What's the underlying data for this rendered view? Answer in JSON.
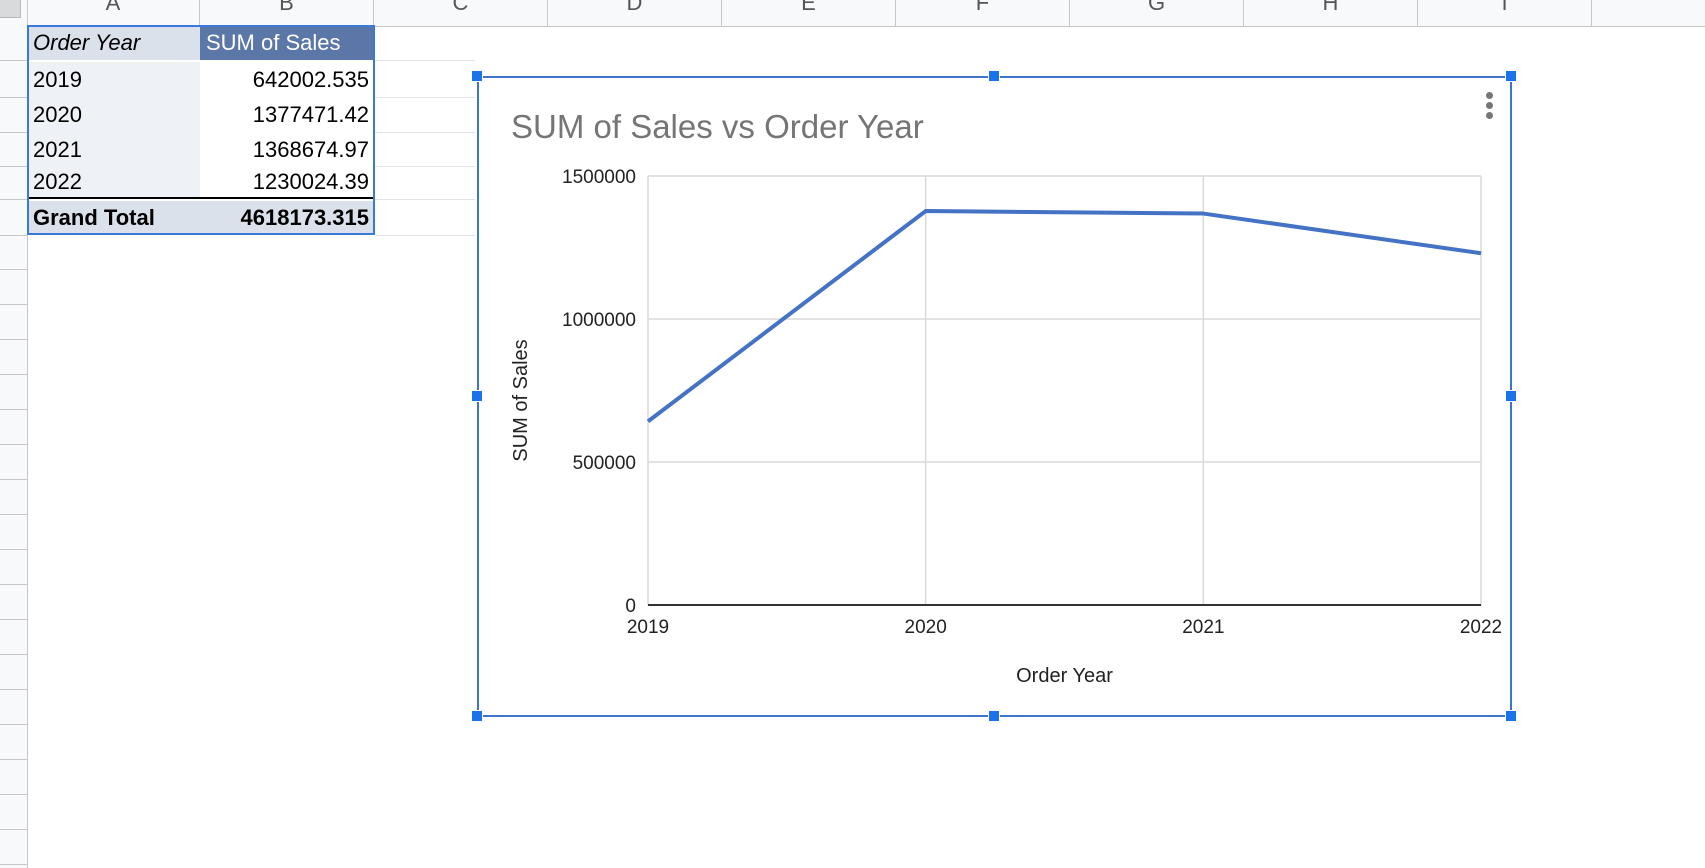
{
  "columns": [
    "A",
    "B",
    "C",
    "D",
    "E",
    "F",
    "G",
    "H",
    "I"
  ],
  "pivot": {
    "header_year": "Order Year",
    "header_sales": "SUM of Sales",
    "rows": [
      {
        "year": "2019",
        "sales": "642002.535"
      },
      {
        "year": "2020",
        "sales": "1377471.42"
      },
      {
        "year": "2021",
        "sales": "1368674.97"
      },
      {
        "year": "2022",
        "sales": "1230024.39"
      }
    ],
    "total_label": "Grand Total",
    "total_value": "4618173.315"
  },
  "chart": {
    "title": "SUM of Sales vs Order Year",
    "menu_icon": "more-vert-icon",
    "line_color": "#4472c4",
    "selection_color": "#1a73e8"
  },
  "chart_data": {
    "type": "line",
    "title": "SUM of Sales vs Order Year",
    "xlabel": "Order Year",
    "ylabel": "SUM of Sales",
    "categories": [
      "2019",
      "2020",
      "2021",
      "2022"
    ],
    "series": [
      {
        "values": [
          642002.535,
          1377471.42,
          1368674.97,
          1230024.39
        ]
      }
    ],
    "ylim": [
      0,
      1500000
    ],
    "yticks": [
      "0",
      "500000",
      "1000000",
      "1500000"
    ],
    "grid": true,
    "legend": "none"
  }
}
